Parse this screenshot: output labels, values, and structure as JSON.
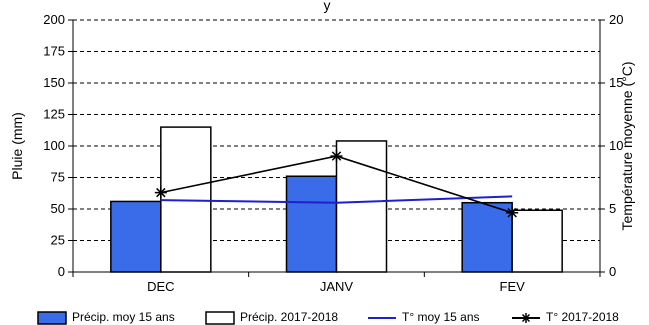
{
  "chart_data": {
    "type": "bar",
    "title_visible": "y",
    "categories": [
      "DEC",
      "JANV",
      "FEV"
    ],
    "ylabel_left": "Pluie (mm)",
    "ylabel_right": "Température moyenne (°C)",
    "ylim_left": [
      0,
      200
    ],
    "ylim_right": [
      0,
      20
    ],
    "yticks_left": [
      "0",
      "25",
      "50",
      "75",
      "100",
      "125",
      "150",
      "175",
      "200"
    ],
    "yticks_right": [
      "0",
      "5",
      "10",
      "15",
      "20"
    ],
    "grid": "dashed-horizontal",
    "legend_placement": "bottom",
    "series": [
      {
        "name": "Précip. moy 15 ans",
        "kind": "bar",
        "axis": "left",
        "color": "#3a6be8",
        "values": [
          56,
          76,
          55
        ]
      },
      {
        "name": "Précip. 2017-2018",
        "kind": "bar",
        "axis": "left",
        "color": "#ffffff",
        "values": [
          115,
          104,
          49
        ]
      },
      {
        "name": "T° moy 15 ans",
        "kind": "line",
        "axis": "right",
        "color": "#1f1fcf",
        "values": [
          5.7,
          5.5,
          6.0
        ]
      },
      {
        "name": "T° 2017-2018",
        "kind": "line-star",
        "axis": "right",
        "color": "#000000",
        "values": [
          6.3,
          9.2,
          4.7
        ]
      }
    ]
  }
}
